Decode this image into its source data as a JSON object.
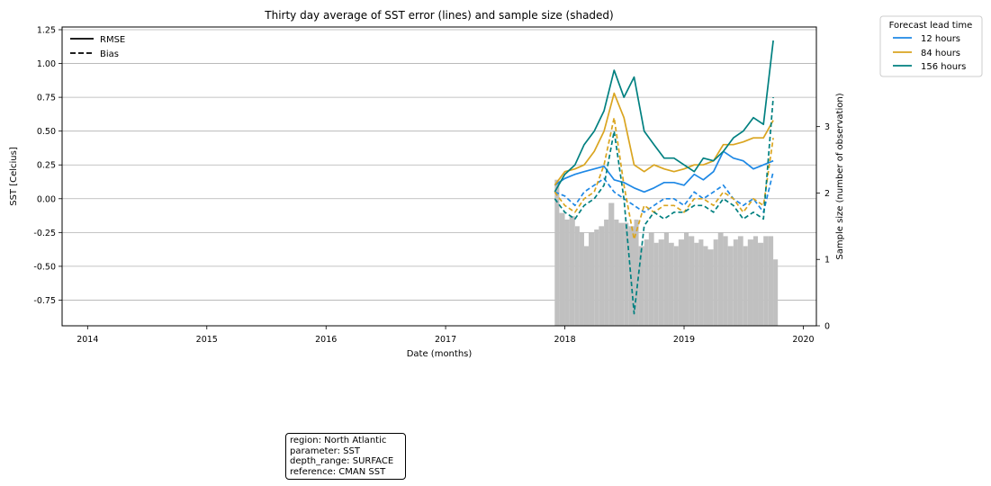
{
  "chart_data": {
    "type": "line",
    "title": "Thirty day average of SST error (lines) and sample size (shaded)",
    "xlabel": "Date (months)",
    "ylabel": "SST [Celcius]",
    "y2label": "Sample size (number of observation)",
    "xlim": [
      "2013-10-15",
      "2020-02-10"
    ],
    "ylim": [
      -0.94,
      1.27
    ],
    "y2lim": [
      0,
      4.5
    ],
    "x_ticks": [
      "2014",
      "2015",
      "2016",
      "2017",
      "2018",
      "2019",
      "2020"
    ],
    "y_ticks": [
      "-0.75",
      "-0.50",
      "-0.25",
      "0.00",
      "0.25",
      "0.50",
      "0.75",
      "1.00",
      "1.25"
    ],
    "y2_ticks": [
      "0",
      "1",
      "2",
      "3"
    ],
    "grid": "horizontal",
    "style_legend": {
      "placement": "top-left",
      "entries": [
        {
          "label": "RMSE",
          "dash": "solid"
        },
        {
          "label": "Bias",
          "dash": "dashed"
        }
      ]
    },
    "lead_legend": {
      "title": "Forecast lead time",
      "placement": "outside-top-right",
      "entries": [
        {
          "label": "12 hours",
          "color": "#1e88e5"
        },
        {
          "label": "84 hours",
          "color": "#daa520"
        },
        {
          "label": "156 hours",
          "color": "#008080"
        }
      ]
    },
    "sample_size": {
      "color": "#c0c0c0",
      "x": [
        "2017-12-01",
        "2017-12-15",
        "2018-01-01",
        "2018-01-15",
        "2018-02-01",
        "2018-02-15",
        "2018-03-01",
        "2018-03-15",
        "2018-04-01",
        "2018-04-15",
        "2018-05-01",
        "2018-05-15",
        "2018-06-01",
        "2018-06-15",
        "2018-07-01",
        "2018-07-15",
        "2018-08-01",
        "2018-08-15",
        "2018-09-01",
        "2018-09-15",
        "2018-10-01",
        "2018-10-15",
        "2018-11-01",
        "2018-11-15",
        "2018-12-01",
        "2018-12-15",
        "2019-01-01",
        "2019-01-15",
        "2019-02-01",
        "2019-02-15",
        "2019-03-01",
        "2019-03-15",
        "2019-04-01",
        "2019-04-15",
        "2019-05-01",
        "2019-05-15",
        "2019-06-01",
        "2019-06-15",
        "2019-07-01",
        "2019-07-15",
        "2019-08-01",
        "2019-08-15",
        "2019-09-01",
        "2019-09-15",
        "2019-10-01"
      ],
      "values": [
        2.2,
        1.7,
        1.6,
        1.65,
        1.5,
        1.4,
        1.2,
        1.4,
        1.45,
        1.5,
        1.6,
        1.85,
        1.6,
        1.55,
        1.55,
        1.5,
        1.6,
        1.2,
        1.3,
        1.4,
        1.25,
        1.3,
        1.4,
        1.25,
        1.2,
        1.3,
        1.4,
        1.35,
        1.25,
        1.3,
        1.2,
        1.15,
        1.3,
        1.4,
        1.35,
        1.2,
        1.3,
        1.35,
        1.2,
        1.3,
        1.35,
        1.25,
        1.35,
        1.35,
        1.0
      ]
    },
    "series": [
      {
        "name": "12 hours",
        "metric": "RMSE",
        "color": "#1e88e5",
        "x": [
          "2017-12-01",
          "2018-01-01",
          "2018-02-01",
          "2018-03-01",
          "2018-04-01",
          "2018-05-01",
          "2018-06-01",
          "2018-07-01",
          "2018-08-01",
          "2018-09-01",
          "2018-10-01",
          "2018-11-01",
          "2018-12-01",
          "2019-01-01",
          "2019-02-01",
          "2019-03-01",
          "2019-04-01",
          "2019-05-01",
          "2019-06-01",
          "2019-07-01",
          "2019-08-01",
          "2019-09-01",
          "2019-10-01"
        ],
        "values": [
          0.1,
          0.15,
          0.18,
          0.2,
          0.22,
          0.24,
          0.14,
          0.12,
          0.08,
          0.05,
          0.08,
          0.12,
          0.12,
          0.1,
          0.18,
          0.14,
          0.2,
          0.35,
          0.3,
          0.28,
          0.22,
          0.25,
          0.28
        ]
      },
      {
        "name": "84 hours",
        "metric": "RMSE",
        "color": "#daa520",
        "x": [
          "2017-12-01",
          "2018-01-01",
          "2018-02-01",
          "2018-03-01",
          "2018-04-01",
          "2018-05-01",
          "2018-06-01",
          "2018-07-01",
          "2018-08-01",
          "2018-09-01",
          "2018-10-01",
          "2018-11-01",
          "2018-12-01",
          "2019-01-01",
          "2019-02-01",
          "2019-03-01",
          "2019-04-01",
          "2019-05-01",
          "2019-06-01",
          "2019-07-01",
          "2019-08-01",
          "2019-09-01",
          "2019-10-01"
        ],
        "values": [
          0.1,
          0.2,
          0.22,
          0.25,
          0.35,
          0.5,
          0.78,
          0.6,
          0.25,
          0.2,
          0.25,
          0.22,
          0.2,
          0.22,
          0.25,
          0.25,
          0.28,
          0.4,
          0.4,
          0.42,
          0.45,
          0.45,
          0.58
        ]
      },
      {
        "name": "156 hours",
        "metric": "RMSE",
        "color": "#008080",
        "x": [
          "2017-12-01",
          "2018-01-01",
          "2018-02-01",
          "2018-03-01",
          "2018-04-01",
          "2018-05-01",
          "2018-06-01",
          "2018-07-01",
          "2018-08-01",
          "2018-09-01",
          "2018-10-01",
          "2018-11-01",
          "2018-12-01",
          "2019-01-01",
          "2019-02-01",
          "2019-03-01",
          "2019-04-01",
          "2019-05-01",
          "2019-06-01",
          "2019-07-01",
          "2019-08-01",
          "2019-09-01",
          "2019-10-01"
        ],
        "values": [
          0.05,
          0.18,
          0.25,
          0.4,
          0.5,
          0.65,
          0.95,
          0.75,
          0.9,
          0.5,
          0.4,
          0.3,
          0.3,
          0.25,
          0.2,
          0.3,
          0.28,
          0.35,
          0.45,
          0.5,
          0.6,
          0.55,
          1.17
        ]
      },
      {
        "name": "12 hours",
        "metric": "Bias",
        "color": "#1e88e5",
        "x": [
          "2017-12-01",
          "2018-01-01",
          "2018-02-01",
          "2018-03-01",
          "2018-04-01",
          "2018-05-01",
          "2018-06-01",
          "2018-07-01",
          "2018-08-01",
          "2018-09-01",
          "2018-10-01",
          "2018-11-01",
          "2018-12-01",
          "2019-01-01",
          "2019-02-01",
          "2019-03-01",
          "2019-04-01",
          "2019-05-01",
          "2019-06-01",
          "2019-07-01",
          "2019-08-01",
          "2019-09-01",
          "2019-10-01"
        ],
        "values": [
          0.05,
          0.02,
          -0.05,
          0.05,
          0.1,
          0.15,
          0.05,
          0.0,
          -0.05,
          -0.1,
          -0.05,
          0.0,
          0.0,
          -0.05,
          0.05,
          0.0,
          0.05,
          0.1,
          0.0,
          -0.05,
          0.0,
          -0.1,
          0.2
        ]
      },
      {
        "name": "84 hours",
        "metric": "Bias",
        "color": "#daa520",
        "x": [
          "2017-12-01",
          "2018-01-01",
          "2018-02-01",
          "2018-03-01",
          "2018-04-01",
          "2018-05-01",
          "2018-06-01",
          "2018-07-01",
          "2018-08-01",
          "2018-09-01",
          "2018-10-01",
          "2018-11-01",
          "2018-12-01",
          "2019-01-01",
          "2019-02-01",
          "2019-03-01",
          "2019-04-01",
          "2019-05-01",
          "2019-06-01",
          "2019-07-01",
          "2019-08-01",
          "2019-09-01",
          "2019-10-01"
        ],
        "values": [
          0.05,
          -0.05,
          -0.1,
          0.0,
          0.05,
          0.25,
          0.6,
          0.1,
          -0.3,
          -0.05,
          -0.1,
          -0.05,
          -0.05,
          -0.1,
          0.0,
          0.0,
          -0.05,
          0.05,
          0.0,
          -0.1,
          0.0,
          -0.05,
          0.45
        ]
      },
      {
        "name": "156 hours",
        "metric": "Bias",
        "color": "#008080",
        "x": [
          "2017-12-01",
          "2018-01-01",
          "2018-02-01",
          "2018-03-01",
          "2018-04-01",
          "2018-05-01",
          "2018-06-01",
          "2018-07-01",
          "2018-08-01",
          "2018-09-01",
          "2018-10-01",
          "2018-11-01",
          "2018-12-01",
          "2019-01-01",
          "2019-02-01",
          "2019-03-01",
          "2019-04-01",
          "2019-05-01",
          "2019-06-01",
          "2019-07-01",
          "2019-08-01",
          "2019-09-01",
          "2019-10-01"
        ],
        "values": [
          0.0,
          -0.1,
          -0.15,
          -0.05,
          0.0,
          0.1,
          0.5,
          0.0,
          -0.85,
          -0.2,
          -0.1,
          -0.15,
          -0.1,
          -0.1,
          -0.05,
          -0.05,
          -0.1,
          0.0,
          -0.05,
          -0.15,
          -0.1,
          -0.15,
          0.75
        ]
      }
    ]
  },
  "info": {
    "region": "region: North Atlantic",
    "parameter": "parameter: SST",
    "depth_range": "depth_range: SURFACE",
    "reference": "reference: CMAN SST"
  }
}
